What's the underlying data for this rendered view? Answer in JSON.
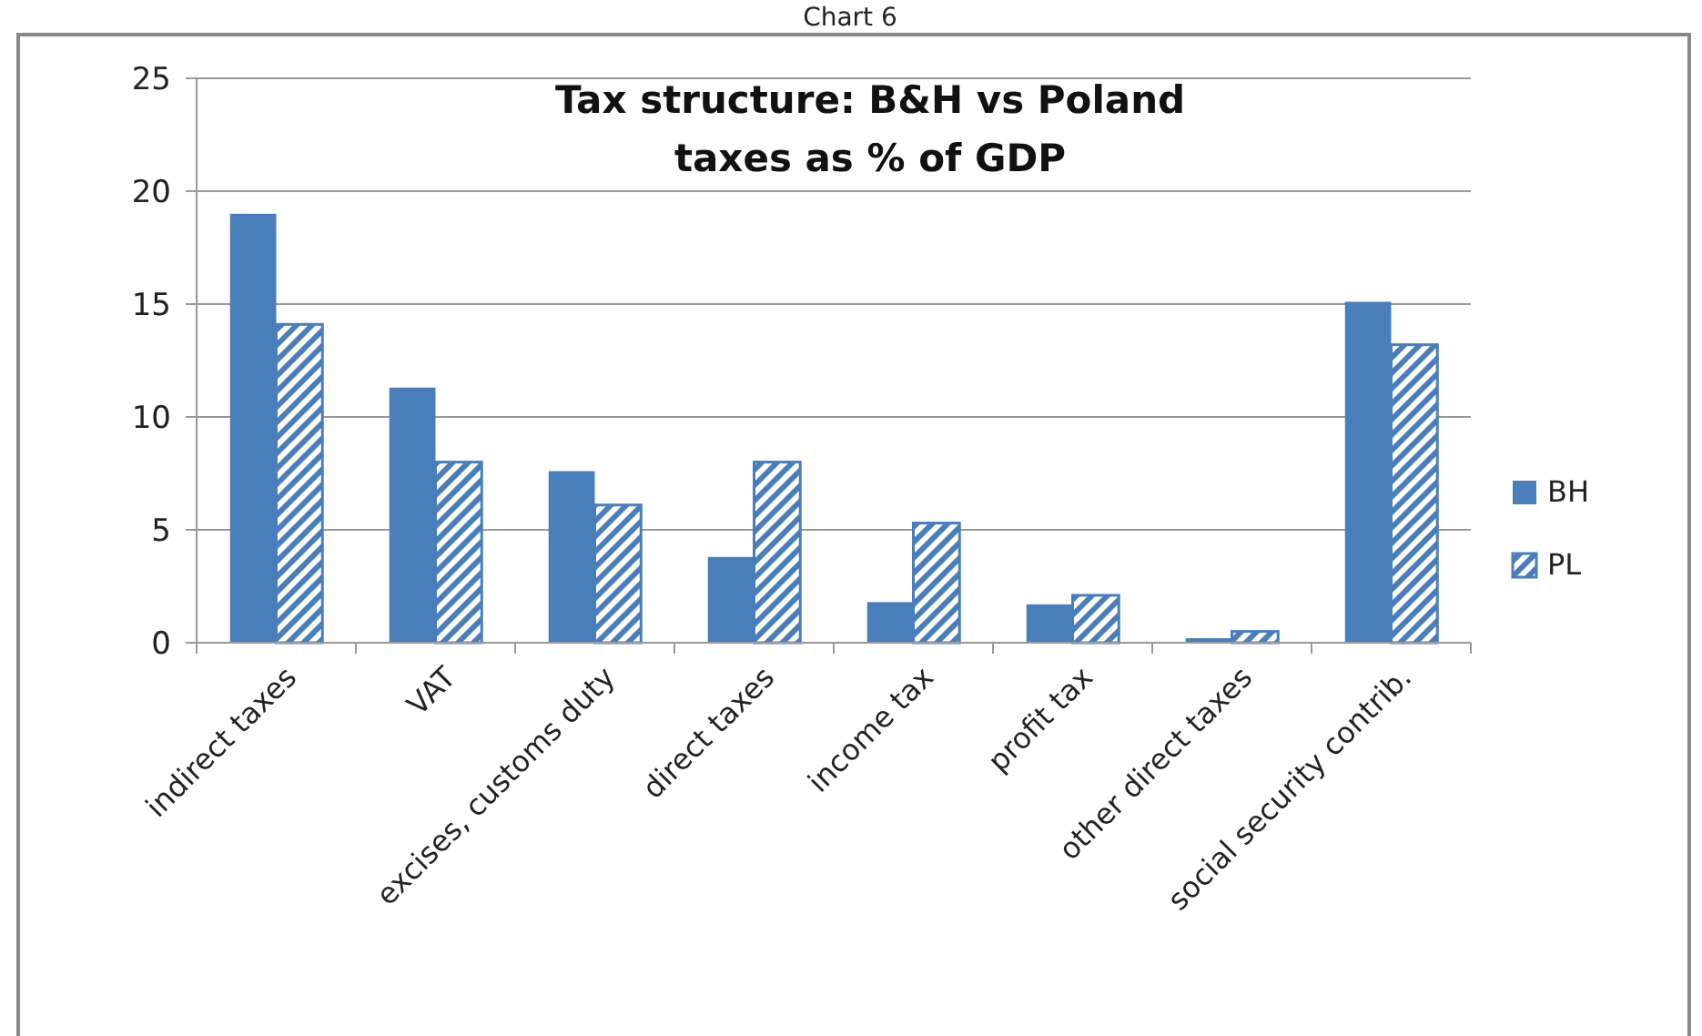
{
  "chart_data": {
    "type": "bar",
    "title": "Tax structure: B&H vs Poland\ntaxes as % of GDP",
    "annotations": [
      "Chart 6"
    ],
    "categories": [
      "indirect taxes",
      "VAT",
      "excises, customs duty",
      "direct taxes",
      "income tax",
      "profit tax",
      "other direct taxes",
      "social security contrib."
    ],
    "series": [
      {
        "name": "BH",
        "color": "#4a7ebb",
        "values": [
          19,
          11.3,
          7.6,
          3.8,
          1.8,
          1.7,
          0.2,
          15.1
        ]
      },
      {
        "name": "PL",
        "color": "#4a7ebb",
        "values": [
          14.1,
          8.0,
          6.1,
          8.0,
          5.3,
          2.1,
          0.5,
          13.2
        ]
      }
    ],
    "ylim": [
      0,
      25
    ],
    "yticks": [
      0,
      5,
      10,
      15,
      20,
      25
    ],
    "grid": "y",
    "legend": "right"
  }
}
